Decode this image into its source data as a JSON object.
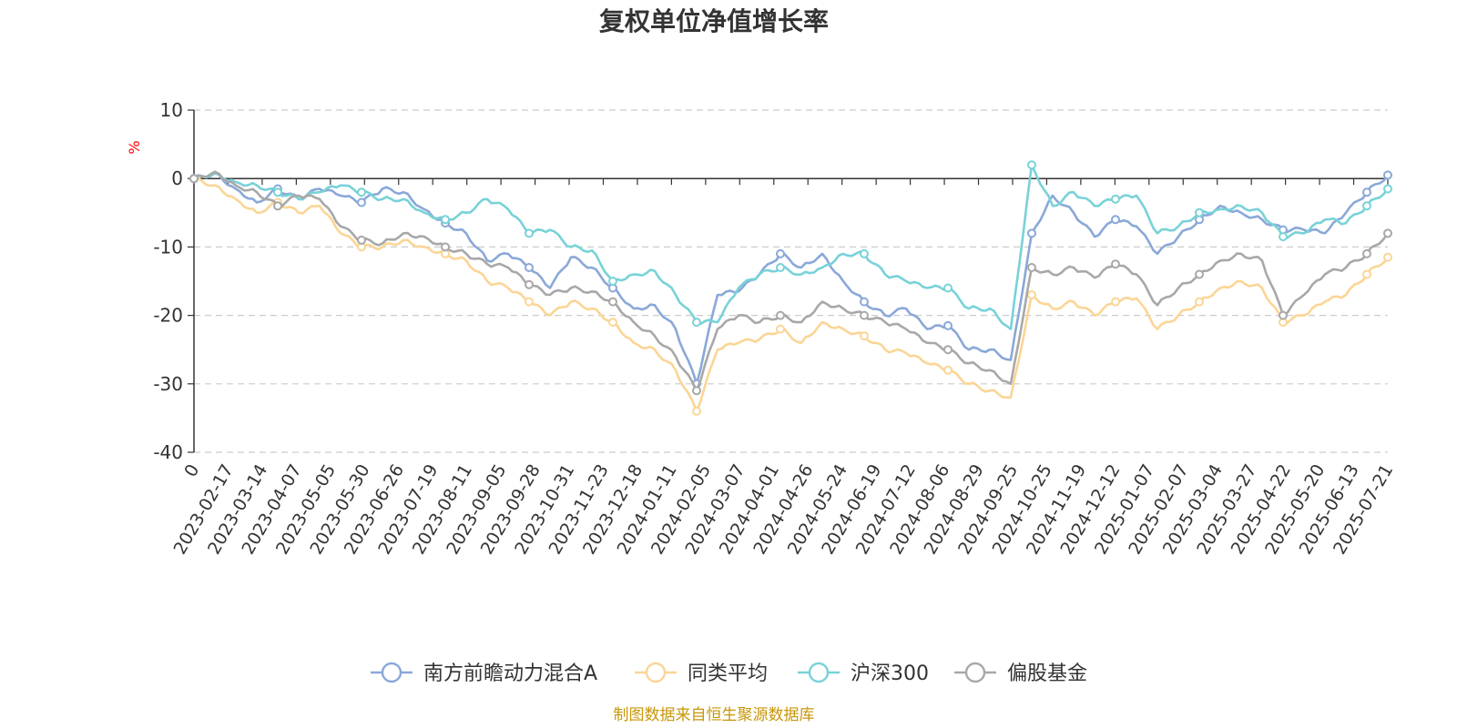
{
  "chart_data": {
    "type": "line",
    "title": "复权单位净值增长率",
    "ylabel": "%",
    "ylim": [
      -40,
      10
    ],
    "yticks": [
      10,
      0,
      -10,
      -20,
      -30,
      -40
    ],
    "grid": true,
    "legend_position": "bottom",
    "x_tick_labels": [
      "0",
      "2023-02-17",
      "2023-03-14",
      "2023-04-07",
      "2023-05-05",
      "2023-05-30",
      "2023-06-26",
      "2023-07-19",
      "2023-08-11",
      "2023-09-05",
      "2023-09-28",
      "2023-10-31",
      "2023-11-23",
      "2023-12-18",
      "2024-01-11",
      "2024-02-05",
      "2024-03-07",
      "2024-04-01",
      "2024-04-26",
      "2024-05-24",
      "2024-06-19",
      "2024-07-12",
      "2024-08-06",
      "2024-08-29",
      "2024-09-25",
      "2024-10-25",
      "2024-11-19",
      "2024-12-12",
      "2025-01-07",
      "2025-02-07",
      "2025-03-04",
      "2025-03-27",
      "2025-04-22",
      "2025-05-20",
      "2025-06-13",
      "2025-07-21"
    ],
    "series": [
      {
        "name": "南方前瞻动力混合A",
        "color": "#8aa8d8",
        "values": [
          0,
          0.8,
          -1.5,
          -3.5,
          -1.5,
          -3,
          -1.5,
          -2.5,
          -3.5,
          -1.5,
          -2,
          -4.5,
          -6.5,
          -8,
          -12,
          -11,
          -13,
          -16,
          -11.5,
          -13,
          -16,
          -19,
          -18.5,
          -22,
          -30,
          -17,
          -16.5,
          -14,
          -11,
          -13,
          -11,
          -15,
          -18,
          -20,
          -19,
          -22,
          -21.5,
          -25,
          -25,
          -26.5,
          -8,
          -2.5,
          -5,
          -8.5,
          -6,
          -7,
          -11,
          -8.5,
          -6,
          -4,
          -5,
          -6,
          -7.5,
          -7.5,
          -8,
          -5,
          -2,
          0.5
        ]
      },
      {
        "name": "同类平均",
        "color": "#fbd595",
        "values": [
          0,
          -1,
          -3,
          -5,
          -3.5,
          -5,
          -4,
          -8,
          -10,
          -10,
          -9,
          -10,
          -11,
          -12,
          -15,
          -16,
          -18,
          -20,
          -18,
          -19,
          -21,
          -24,
          -25,
          -28,
          -34,
          -25,
          -24,
          -23.5,
          -22,
          -24,
          -21,
          -22,
          -23,
          -25,
          -25.5,
          -27,
          -28,
          -30,
          -31,
          -32,
          -17,
          -19,
          -18,
          -20,
          -18,
          -17.5,
          -22,
          -20,
          -18,
          -16,
          -15,
          -16,
          -21,
          -20,
          -18,
          -17,
          -14,
          -11.5
        ]
      },
      {
        "name": "沪深300",
        "color": "#78d2d8",
        "values": [
          0,
          0.8,
          -0.5,
          -1,
          -2,
          -3,
          -2,
          -1,
          -2,
          -3,
          -3,
          -5,
          -6,
          -5,
          -3,
          -4.5,
          -8,
          -7.5,
          -10,
          -10.5,
          -15,
          -14,
          -13.5,
          -17,
          -21,
          -21,
          -16,
          -14,
          -13,
          -14,
          -13,
          -11,
          -11,
          -14,
          -15,
          -16,
          -16,
          -19,
          -19,
          -22,
          2,
          -4,
          -2,
          -4,
          -3,
          -2.5,
          -8,
          -7,
          -5,
          -4.5,
          -4,
          -5,
          -8.5,
          -8,
          -6,
          -6.5,
          -4,
          -1.5
        ]
      },
      {
        "name": "偏股基金",
        "color": "#a8a8a8",
        "values": [
          0,
          1,
          -1,
          -2,
          -4,
          -2.5,
          -3,
          -7,
          -9,
          -9.5,
          -8,
          -8.5,
          -10,
          -11,
          -12.5,
          -13,
          -15.5,
          -17,
          -16,
          -16.5,
          -18,
          -21,
          -23,
          -26,
          -31,
          -22,
          -20,
          -21,
          -20,
          -21,
          -18,
          -19,
          -20,
          -21,
          -22,
          -24,
          -25,
          -27,
          -28,
          -30,
          -13,
          -14,
          -13,
          -14.5,
          -12.5,
          -14,
          -18.5,
          -16,
          -14,
          -12,
          -11,
          -12,
          -20,
          -17,
          -14,
          -13,
          -11,
          -8
        ]
      }
    ]
  },
  "legend": [
    {
      "label": "南方前瞻动力混合A",
      "color": "#8aa8d8"
    },
    {
      "label": "同类平均",
      "color": "#fbd595"
    },
    {
      "label": "沪深300",
      "color": "#78d2d8"
    },
    {
      "label": "偏股基金",
      "color": "#a8a8a8"
    }
  ],
  "source_text": "制图数据来自恒生聚源数据库",
  "colors": {
    "axis": "#333333",
    "grid": "#cccccc",
    "unit": "#ff0000",
    "source": "#c8960a"
  }
}
